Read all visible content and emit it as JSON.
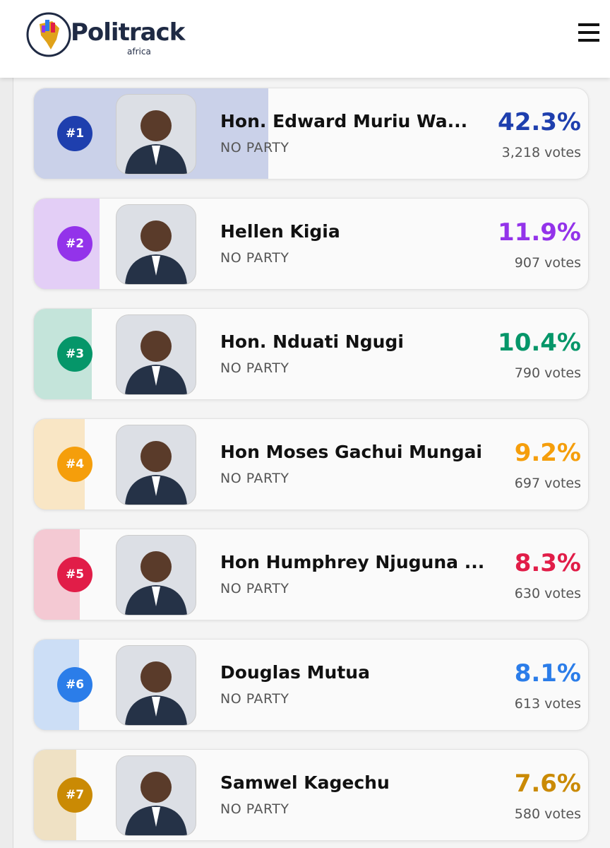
{
  "header": {
    "logo_title": "Politrack",
    "logo_subtitle": "africa"
  },
  "candidates": [
    {
      "rank": "#1",
      "name": "Hon. Edward Muriu Wa...",
      "party": "NO PARTY",
      "percent": {
        "value": 42.3,
        "label": "42.3%"
      },
      "votes": "3,218 votes",
      "color": "#1e3fae"
    },
    {
      "rank": "#2",
      "name": "Hellen Kigia",
      "party": "NO PARTY",
      "percent": {
        "value": 11.9,
        "label": "11.9%"
      },
      "votes": "907 votes",
      "color": "#9333ea"
    },
    {
      "rank": "#3",
      "name": "Hon. Nduati Ngugi",
      "party": "NO PARTY",
      "percent": {
        "value": 10.4,
        "label": "10.4%"
      },
      "votes": "790 votes",
      "color": "#059669"
    },
    {
      "rank": "#4",
      "name": "Hon Moses Gachui Mungai",
      "party": "NO PARTY",
      "percent": {
        "value": 9.2,
        "label": "9.2%"
      },
      "votes": "697 votes",
      "color": "#f59e0b"
    },
    {
      "rank": "#5",
      "name": "Hon Humphrey Njuguna ...",
      "party": "NO PARTY",
      "percent": {
        "value": 8.3,
        "label": "8.3%"
      },
      "votes": "630 votes",
      "color": "#e11d48"
    },
    {
      "rank": "#6",
      "name": "Douglas Mutua",
      "party": "NO PARTY",
      "percent": {
        "value": 8.1,
        "label": "8.1%"
      },
      "votes": "613 votes",
      "color": "#2b7de9"
    },
    {
      "rank": "#7",
      "name": "Samwel Kagechu",
      "party": "NO PARTY",
      "percent": {
        "value": 7.6,
        "label": "7.6%"
      },
      "votes": "580 votes",
      "color": "#ca8a04"
    }
  ]
}
